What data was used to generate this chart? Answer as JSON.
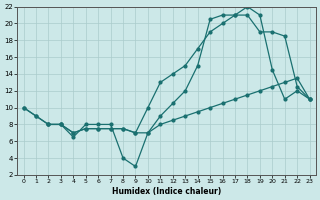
{
  "xlabel": "Humidex (Indice chaleur)",
  "bg_color": "#cce8e8",
  "line_color": "#1a7070",
  "grid_color": "#aacccc",
  "xlim": [
    -0.5,
    23.5
  ],
  "ylim": [
    2,
    22
  ],
  "xticks": [
    0,
    1,
    2,
    3,
    4,
    5,
    6,
    7,
    8,
    9,
    10,
    11,
    12,
    13,
    14,
    15,
    16,
    17,
    18,
    19,
    20,
    21,
    22,
    23
  ],
  "yticks": [
    2,
    4,
    6,
    8,
    10,
    12,
    14,
    16,
    18,
    20,
    22
  ],
  "line1_x": [
    0,
    1,
    2,
    3,
    4,
    5,
    6,
    7,
    8,
    9,
    10,
    11,
    12,
    13,
    14,
    15,
    16,
    17,
    18,
    19,
    20,
    21,
    22,
    23
  ],
  "line1_y": [
    10,
    9,
    8,
    8,
    7,
    7.5,
    7.5,
    7.5,
    7.5,
    7,
    7,
    8,
    8.5,
    9,
    9.5,
    10,
    10.5,
    11,
    11.5,
    12,
    12.5,
    13,
    13.5,
    11
  ],
  "line2_x": [
    0,
    1,
    2,
    3,
    4,
    5,
    6,
    7,
    8,
    9,
    10,
    11,
    12,
    13,
    14,
    15,
    16,
    17,
    18,
    19,
    20,
    21,
    22,
    23
  ],
  "line2_y": [
    10,
    9,
    8,
    8,
    7,
    7.5,
    7.5,
    7.5,
    7.5,
    7,
    10,
    13,
    14,
    15,
    17,
    19,
    20,
    21,
    21,
    19,
    19,
    18.5,
    12.5,
    11
  ],
  "line3_x": [
    2,
    3,
    4,
    5,
    6,
    7,
    8,
    9,
    10,
    11,
    12,
    13,
    14,
    15,
    16,
    17,
    18,
    19,
    20,
    21,
    22,
    23
  ],
  "line3_y": [
    8,
    8,
    6.5,
    8,
    8,
    8,
    4,
    3,
    7,
    9,
    10.5,
    12,
    15,
    20.5,
    21,
    21,
    22,
    21,
    14.5,
    11,
    12,
    11
  ]
}
